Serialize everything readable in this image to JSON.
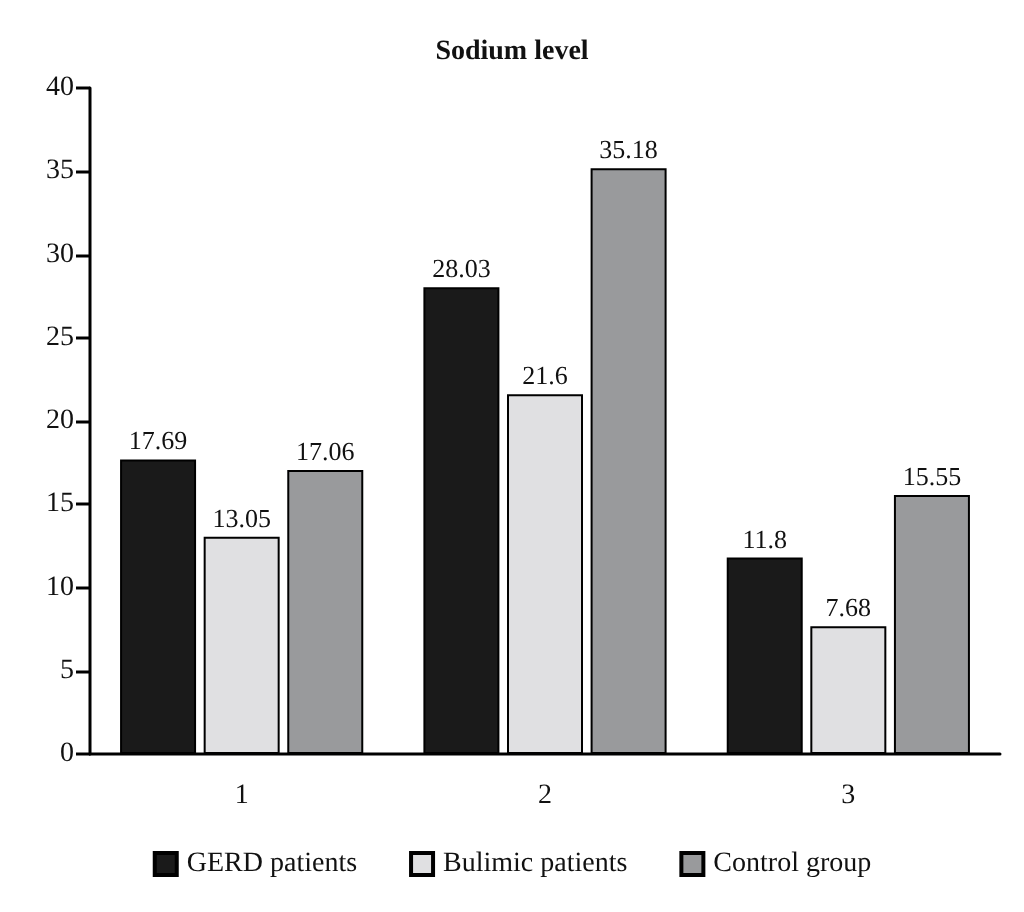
{
  "chart_data": {
    "type": "bar",
    "title": "Sodium level",
    "categories": [
      "1",
      "2",
      "3"
    ],
    "series": [
      {
        "name": "GERD patients",
        "color": "#1a1a1a",
        "values": [
          17.69,
          28.03,
          11.8
        ]
      },
      {
        "name": "Bulimic patients",
        "color": "#e0e0e2",
        "values": [
          13.05,
          21.6,
          7.68
        ]
      },
      {
        "name": "Control group",
        "color": "#999a9c",
        "values": [
          17.06,
          35.18,
          15.55
        ]
      }
    ],
    "ylim": [
      0,
      40
    ],
    "yticks": [
      0,
      5,
      10,
      15,
      20,
      25,
      30,
      35,
      40
    ],
    "grid": false,
    "legend": "bottom",
    "data_labels": true
  }
}
